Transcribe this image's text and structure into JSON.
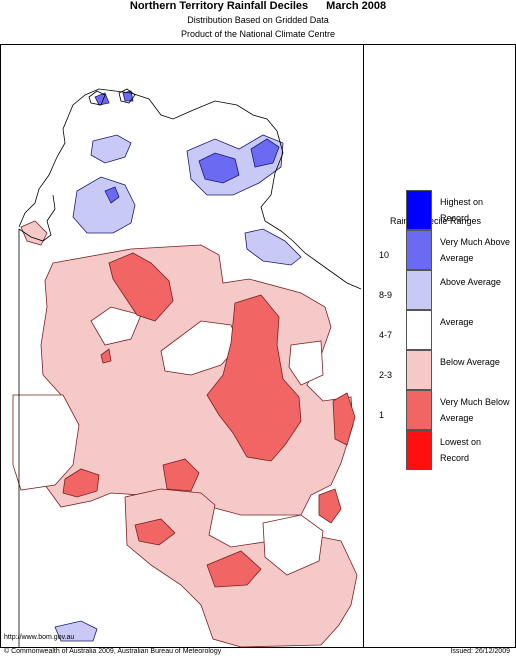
{
  "header": {
    "title": "Northern Territory Rainfall Deciles",
    "date": "March 2008",
    "subtitle1": "Distribution Based on Gridded Data",
    "subtitle2": "Product of the National Climate Centre"
  },
  "legend": {
    "title": "Rainfall Decile Ranges",
    "items": [
      {
        "label": "Highest on Record",
        "code": "",
        "color": "#0000ff"
      },
      {
        "label": "Very Much Above Average",
        "code": "10",
        "color": "#6a6af2"
      },
      {
        "label": "Above Average",
        "code": "8-9",
        "color": "#c9c9f5"
      },
      {
        "label": "Average",
        "code": "4-7",
        "color": "#ffffff"
      },
      {
        "label": "Below Average",
        "code": "2-3",
        "color": "#f6c9c9"
      },
      {
        "label": "Very Much Below Average",
        "code": "1",
        "color": "#f26565"
      },
      {
        "label": "Lowest on Record",
        "code": "",
        "color": "#ff1010"
      }
    ]
  },
  "footer": {
    "url": "http://www.bom.gov.au",
    "copyright": "© Commonwealth of Australia 2009, Australian Bureau of Meteorology",
    "issued": "Issued: 26/12/2009"
  }
}
